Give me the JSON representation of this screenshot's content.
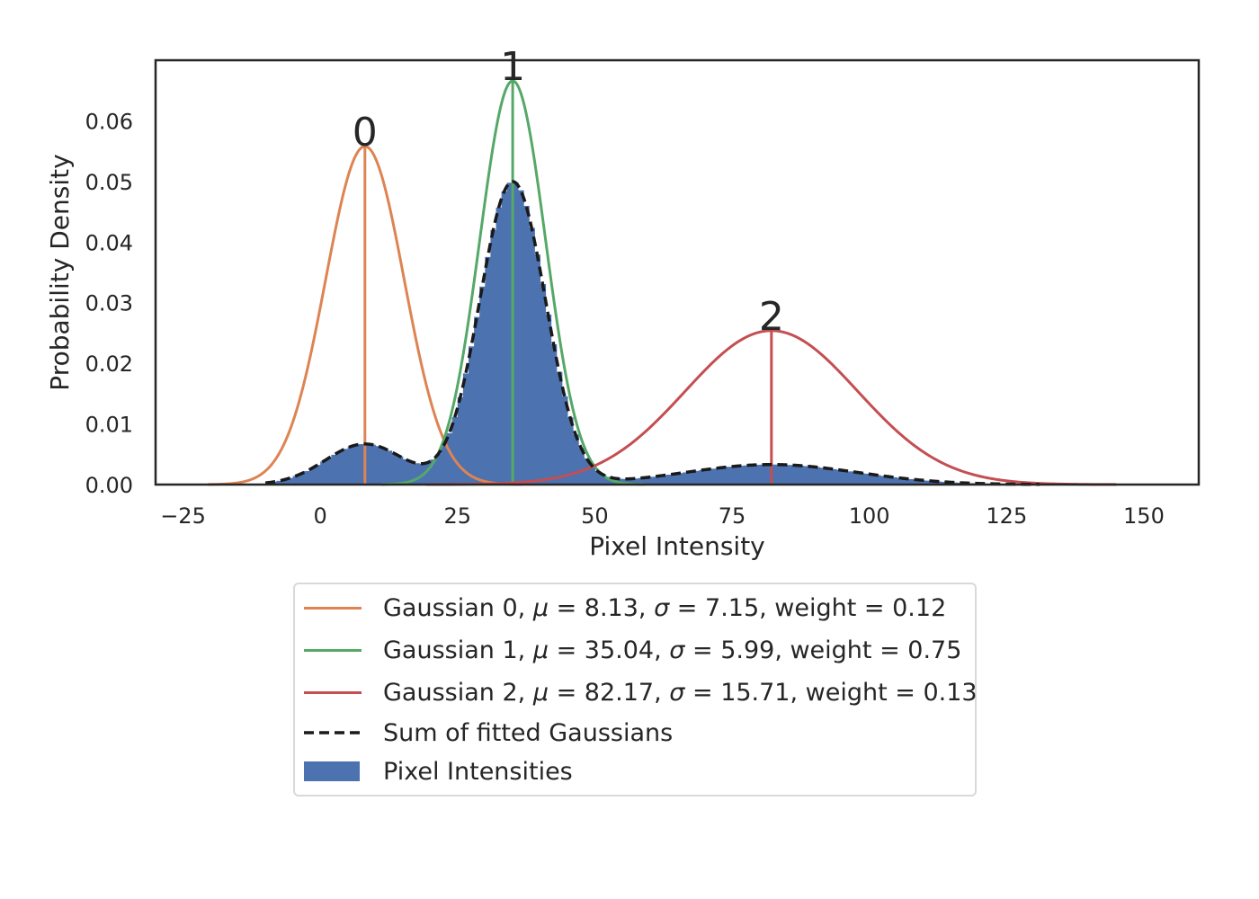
{
  "chart_data": {
    "type": "histogram",
    "xlabel": "Pixel Intensity",
    "ylabel": "Probability Density",
    "xlim": [
      -30,
      160
    ],
    "ylim": [
      0,
      0.07
    ],
    "xticks": [
      -25,
      0,
      25,
      50,
      75,
      100,
      125,
      150
    ],
    "xtick_labels": [
      "−25",
      "0",
      "25",
      "50",
      "75",
      "100",
      "125",
      "150"
    ],
    "yticks": [
      0.0,
      0.01,
      0.02,
      0.03,
      0.04,
      0.05,
      0.06
    ],
    "ytick_labels": [
      "0.00",
      "0.01",
      "0.02",
      "0.03",
      "0.04",
      "0.05",
      "0.06"
    ],
    "grid": false,
    "legend_placement": "below-center",
    "histogram": {
      "name": "Pixel Intensities",
      "color": "#4c72b0",
      "bin_width": 1,
      "x_range": [
        -10,
        131
      ]
    },
    "gaussians": [
      {
        "id": "0",
        "label": "Gaussian 0, μ = 8.13, σ = 7.15, weight = 0.12",
        "mu": 8.13,
        "sigma": 7.15,
        "weight": 0.12,
        "color": "#dd8452"
      },
      {
        "id": "1",
        "label": "Gaussian 1, μ = 35.04, σ = 5.99, weight = 0.75",
        "mu": 35.04,
        "sigma": 5.99,
        "weight": 0.75,
        "color": "#55a868"
      },
      {
        "id": "2",
        "label": "Gaussian 2, μ = 82.17, σ = 15.71, weight = 0.13",
        "mu": 82.17,
        "sigma": 15.71,
        "weight": 0.13,
        "color": "#c44e52"
      }
    ],
    "sum_curve": {
      "label": "Sum of fitted Gaussians",
      "color": "#1a1a1a",
      "style": "dashed"
    }
  },
  "legend": {
    "items": [
      {
        "label_prefix": "Gaussian 0, ",
        "mu_value": "8.13",
        "sigma_value": "7.15",
        "weight_text": ", weight = 0.12"
      },
      {
        "label_prefix": "Gaussian 1, ",
        "mu_value": "35.04",
        "sigma_value": "5.99",
        "weight_text": ", weight = 0.75"
      },
      {
        "label_prefix": "Gaussian 2, ",
        "mu_value": "82.17",
        "sigma_value": "15.71",
        "weight_text": ", weight = 0.13"
      }
    ],
    "sum_label": "Sum of fitted Gaussians",
    "hist_label": "Pixel Intensities"
  }
}
